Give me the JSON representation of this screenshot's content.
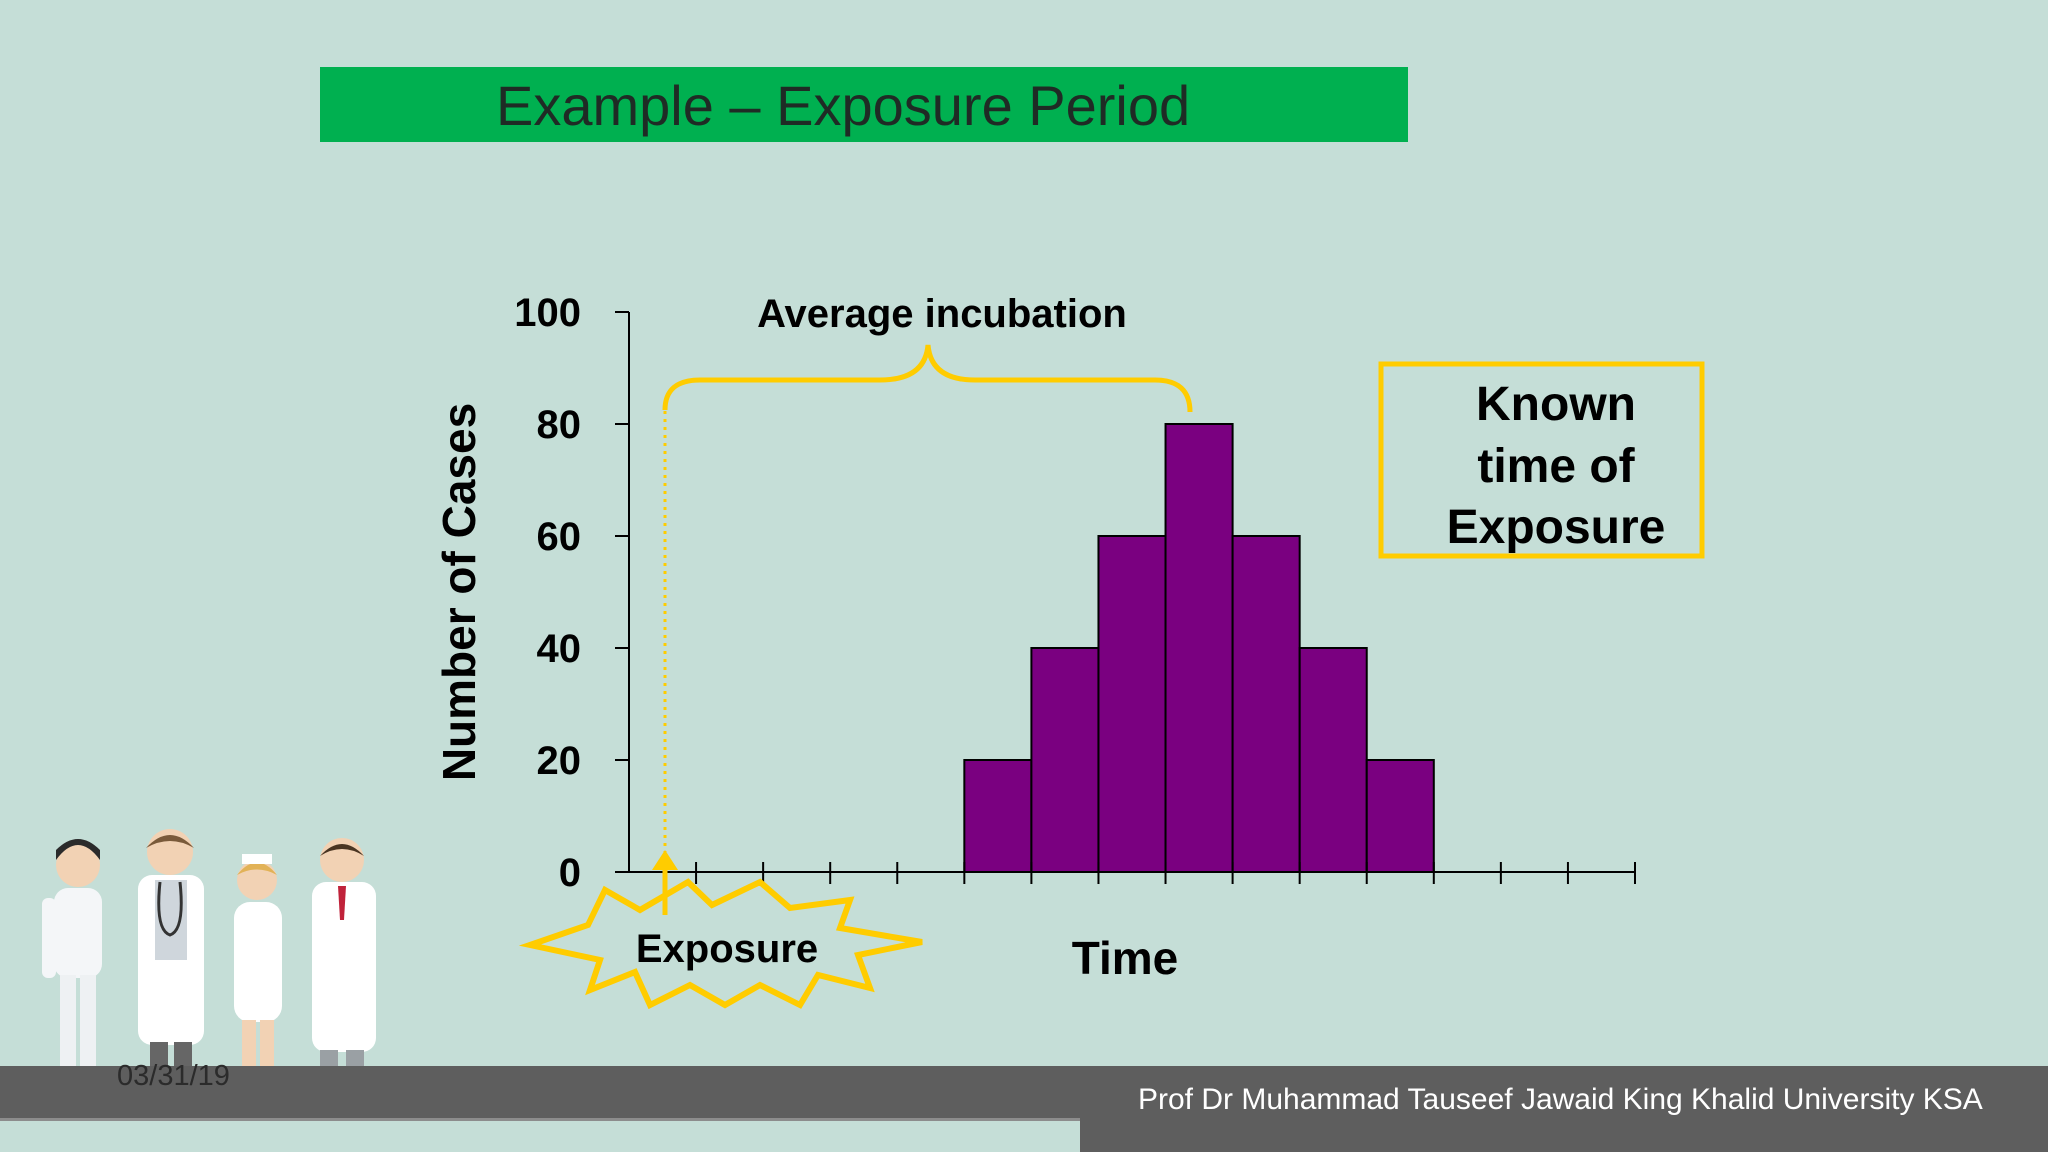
{
  "slide": {
    "title": "Example – Exposure Period",
    "footer_date": "03/31/19",
    "footer_credit": "Prof Dr Muhammad Tauseef Jawaid King Khalid University KSA"
  },
  "colors": {
    "background": "#c5ded7",
    "title_bar": "#00b050",
    "bars": "#7a0080",
    "annotation": "#ffcc00",
    "footer": "#5e5e5e"
  },
  "chart_data": {
    "type": "bar",
    "title": "",
    "xlabel": "Time",
    "ylabel": "Number of Cases",
    "ylim": [
      0,
      100
    ],
    "yticks": [
      0,
      20,
      40,
      60,
      80,
      100
    ],
    "x_intervals": 15,
    "categories": [
      "",
      "",
      "",
      "",
      "",
      "",
      "",
      "",
      "",
      "",
      "",
      "",
      "",
      "",
      ""
    ],
    "values": [
      0,
      0,
      0,
      0,
      0,
      20,
      40,
      60,
      80,
      60,
      40,
      20,
      0,
      0,
      0
    ],
    "grid": false,
    "annotations": {
      "brace_label": "Average incubation",
      "exposure_label": "Exposure",
      "box_lines": [
        "Known",
        "time of",
        "Exposure"
      ]
    }
  }
}
